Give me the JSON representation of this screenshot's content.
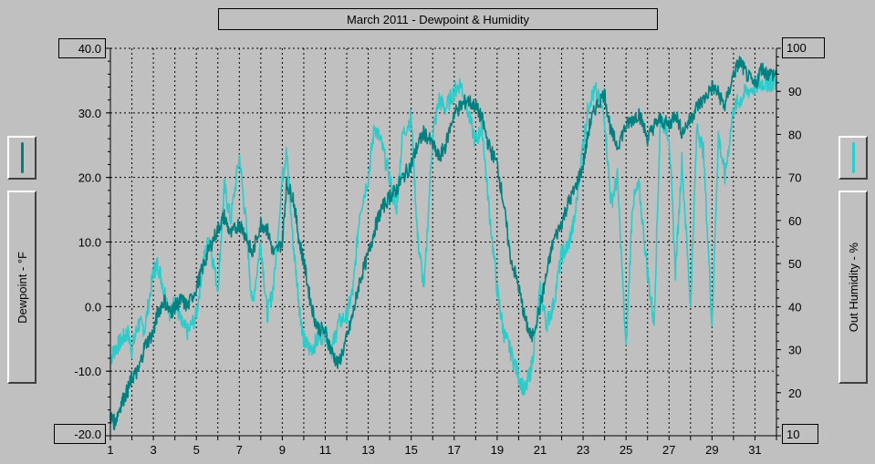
{
  "title": "March 2011 - Dewpoint & Humidity",
  "left_axis": {
    "label": "Dewpoint - °F",
    "top_value": "40.0",
    "bottom_value": "-20.0"
  },
  "right_axis": {
    "label": "Out Humidity - %",
    "top_value": "100",
    "bottom_value": "10"
  },
  "colors": {
    "dewpoint": "#008080",
    "humidity": "#2ecbcb",
    "background": "#c0c0c0",
    "grid": "#000000"
  },
  "chart_data": {
    "type": "line",
    "title": "March 2011 - Dewpoint & Humidity",
    "xlabel": "",
    "x_ticks": [
      "1",
      "3",
      "5",
      "7",
      "9",
      "11",
      "13",
      "15",
      "17",
      "19",
      "21",
      "23",
      "25",
      "27",
      "29",
      "31"
    ],
    "xlim": [
      1,
      32
    ],
    "y_left": {
      "label": "Dewpoint - °F",
      "ylim": [
        -20,
        40
      ],
      "ticks": [
        "40.0",
        "30.0",
        "20.0",
        "10.0",
        "0.0",
        "-10.0",
        "-20.0"
      ]
    },
    "y_right": {
      "label": "Out Humidity - %",
      "ylim": [
        10,
        100
      ],
      "ticks": [
        "100",
        "90",
        "80",
        "70",
        "60",
        "50",
        "40",
        "30",
        "20",
        "10"
      ]
    },
    "grid": true,
    "series": [
      {
        "name": "Dewpoint - °F",
        "axis": "left",
        "x": [
          1.0,
          1.2,
          1.5,
          1.8,
          2.0,
          2.3,
          2.6,
          3.0,
          3.2,
          3.5,
          3.8,
          4.0,
          4.3,
          4.6,
          5.0,
          5.3,
          5.6,
          6.0,
          6.3,
          6.6,
          7.0,
          7.3,
          7.6,
          8.0,
          8.3,
          8.6,
          9.0,
          9.2,
          9.5,
          9.8,
          10.0,
          10.3,
          10.6,
          11.0,
          11.3,
          11.6,
          12.0,
          12.3,
          12.6,
          13.0,
          13.3,
          13.6,
          14.0,
          14.3,
          14.6,
          15.0,
          15.3,
          15.6,
          16.0,
          16.3,
          16.6,
          17.0,
          17.3,
          17.6,
          18.0,
          18.3,
          18.6,
          19.0,
          19.3,
          19.6,
          20.0,
          20.3,
          20.6,
          21.0,
          21.3,
          21.6,
          22.0,
          22.3,
          22.6,
          23.0,
          23.3,
          23.6,
          24.0,
          24.3,
          24.6,
          25.0,
          25.3,
          25.6,
          26.0,
          26.3,
          26.6,
          27.0,
          27.3,
          27.6,
          28.0,
          28.3,
          28.6,
          29.0,
          29.3,
          29.6,
          30.0,
          30.3,
          30.6,
          31.0,
          31.3,
          31.6,
          32.0
        ],
        "values": [
          -17,
          -18,
          -15,
          -13,
          -11,
          -10,
          -6,
          -4,
          -1,
          1,
          -1,
          0,
          1,
          0,
          3,
          6,
          9,
          12,
          14,
          11,
          13,
          11,
          8,
          13,
          12,
          8,
          10,
          19,
          17,
          10,
          7,
          1,
          -3,
          -4,
          -7,
          -9,
          -5,
          -1,
          4,
          8,
          12,
          15,
          17,
          18,
          20,
          22,
          25,
          27,
          25,
          23,
          25,
          30,
          31,
          32,
          31,
          29,
          25,
          22,
          16,
          8,
          3,
          -2,
          -5,
          0,
          5,
          10,
          13,
          16,
          18,
          22,
          28,
          31,
          33,
          27,
          25,
          28,
          29,
          30,
          26,
          28,
          29,
          28,
          30,
          27,
          29,
          31,
          32,
          34,
          33,
          31,
          36,
          38,
          36,
          34,
          37,
          36,
          36
        ],
        "color": "#008080"
      },
      {
        "name": "Out Humidity - %",
        "axis": "right",
        "x": [
          1.0,
          1.2,
          1.5,
          1.8,
          2.0,
          2.3,
          2.6,
          3.0,
          3.2,
          3.5,
          3.8,
          4.0,
          4.3,
          4.6,
          5.0,
          5.3,
          5.6,
          6.0,
          6.3,
          6.6,
          7.0,
          7.3,
          7.6,
          8.0,
          8.3,
          8.6,
          9.0,
          9.2,
          9.5,
          9.8,
          10.0,
          10.3,
          10.6,
          11.0,
          11.3,
          11.6,
          12.0,
          12.3,
          12.6,
          13.0,
          13.3,
          13.6,
          14.0,
          14.3,
          14.6,
          15.0,
          15.3,
          15.6,
          16.0,
          16.3,
          16.6,
          17.0,
          17.3,
          17.6,
          18.0,
          18.3,
          18.6,
          19.0,
          19.3,
          19.6,
          20.0,
          20.3,
          20.6,
          21.0,
          21.3,
          21.6,
          22.0,
          22.3,
          22.6,
          23.0,
          23.3,
          23.6,
          24.0,
          24.3,
          24.6,
          25.0,
          25.3,
          25.6,
          26.0,
          26.3,
          26.6,
          27.0,
          27.3,
          27.6,
          28.0,
          28.3,
          28.6,
          29.0,
          29.3,
          29.6,
          30.0,
          30.3,
          30.6,
          31.0,
          31.3,
          31.6,
          32.0
        ],
        "values": [
          28,
          30,
          32,
          34,
          30,
          36,
          35,
          48,
          50,
          44,
          38,
          42,
          36,
          34,
          38,
          50,
          56,
          44,
          68,
          60,
          75,
          60,
          40,
          55,
          38,
          45,
          70,
          76,
          55,
          40,
          32,
          30,
          32,
          34,
          30,
          36,
          38,
          44,
          62,
          70,
          82,
          78,
          70,
          62,
          80,
          84,
          56,
          44,
          80,
          88,
          86,
          90,
          92,
          86,
          78,
          82,
          64,
          44,
          34,
          30,
          24,
          20,
          26,
          44,
          36,
          40,
          52,
          54,
          60,
          78,
          88,
          90,
          84,
          64,
          70,
          30,
          64,
          68,
          48,
          36,
          84,
          80,
          48,
          74,
          40,
          82,
          76,
          36,
          80,
          70,
          86,
          88,
          90,
          91,
          92,
          92,
          92
        ],
        "color": "#2ecbcb"
      }
    ]
  }
}
